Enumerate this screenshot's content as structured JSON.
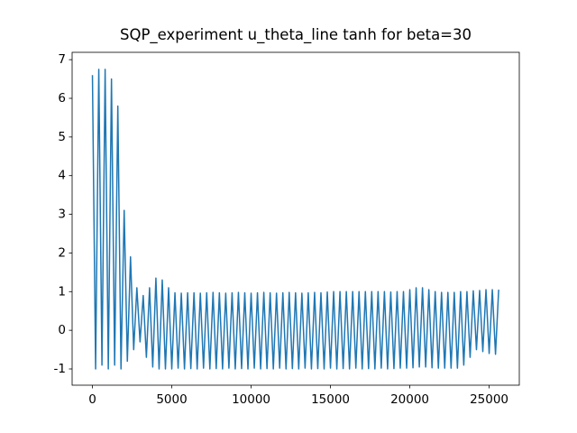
{
  "chart_data": {
    "type": "line",
    "title": "SQP_experiment u_theta_line tanh for beta=30",
    "color": "#1f77b4",
    "x": [
      0,
      200,
      400,
      600,
      800,
      1000,
      1200,
      1400,
      1600,
      1800,
      2000,
      2200,
      2400,
      2600,
      2800,
      3000,
      3200,
      3400,
      3600,
      3800,
      4000,
      4200,
      4400,
      4600,
      4800,
      5000,
      5200,
      5400,
      5600,
      5800,
      6000,
      6200,
      6400,
      6600,
      6800,
      7000,
      7200,
      7400,
      7600,
      7800,
      8000,
      8200,
      8400,
      8600,
      8800,
      9000,
      9200,
      9400,
      9600,
      9800,
      10000,
      10200,
      10400,
      10600,
      10800,
      11000,
      11200,
      11400,
      11600,
      11800,
      12000,
      12200,
      12400,
      12600,
      12800,
      13000,
      13200,
      13400,
      13600,
      13800,
      14000,
      14200,
      14400,
      14600,
      14800,
      15000,
      15200,
      15400,
      15600,
      15800,
      16000,
      16200,
      16400,
      16600,
      16800,
      17000,
      17200,
      17400,
      17600,
      17800,
      18000,
      18200,
      18400,
      18600,
      18800,
      19000,
      19200,
      19400,
      19600,
      19800,
      20000,
      20200,
      20400,
      20600,
      20800,
      21000,
      21200,
      21400,
      21600,
      21800,
      22000,
      22200,
      22400,
      22600,
      22800,
      23000,
      23200,
      23400,
      23600,
      23800,
      24000,
      24200,
      24400,
      24600,
      24800,
      25000,
      25200,
      25400,
      25600
    ],
    "values": [
      6.6,
      -1.0,
      6.75,
      -0.9,
      6.75,
      -1.0,
      6.5,
      -0.9,
      5.8,
      -1.0,
      3.1,
      -0.8,
      1.9,
      -0.5,
      1.1,
      -0.3,
      0.9,
      -0.7,
      1.1,
      -0.95,
      1.35,
      -1.0,
      1.3,
      -1.0,
      1.1,
      -1.0,
      0.97,
      -0.98,
      0.96,
      -1.0,
      0.97,
      -0.99,
      0.97,
      -1.0,
      0.96,
      -0.98,
      0.97,
      -1.0,
      0.98,
      -0.99,
      0.97,
      -1.0,
      0.96,
      -0.98,
      0.97,
      -1.0,
      0.98,
      -0.99,
      0.97,
      -1.0,
      0.96,
      -0.98,
      0.97,
      -1.0,
      0.98,
      -0.99,
      0.97,
      -1.0,
      0.96,
      -0.98,
      0.97,
      -1.0,
      0.98,
      -0.99,
      0.97,
      -1.0,
      0.96,
      -0.98,
      0.97,
      -1.0,
      0.98,
      -0.99,
      0.97,
      -1.0,
      0.99,
      -0.98,
      1.0,
      -1.0,
      1.0,
      -0.99,
      1.0,
      -1.0,
      1.0,
      -0.98,
      1.0,
      -1.0,
      1.0,
      -0.99,
      1.0,
      -1.0,
      1.0,
      -0.98,
      1.0,
      -1.0,
      0.99,
      -0.99,
      1.0,
      -0.98,
      1.0,
      -0.98,
      1.05,
      -0.97,
      1.1,
      -0.95,
      1.1,
      -0.95,
      1.05,
      -0.97,
      1.0,
      -0.98,
      0.98,
      -0.98,
      0.98,
      -0.98,
      0.98,
      -0.98,
      1.0,
      -0.9,
      1.0,
      -0.7,
      1.02,
      -0.5,
      1.03,
      -0.55,
      1.05,
      -0.6,
      1.05,
      -0.62,
      1.05
    ],
    "xlim": [
      -1280,
      26900
    ],
    "ylim": [
      -1.42,
      7.19
    ],
    "xticks": [
      0,
      5000,
      10000,
      15000,
      20000,
      25000
    ],
    "yticks": [
      -1,
      0,
      1,
      2,
      3,
      4,
      5,
      6,
      7
    ]
  }
}
